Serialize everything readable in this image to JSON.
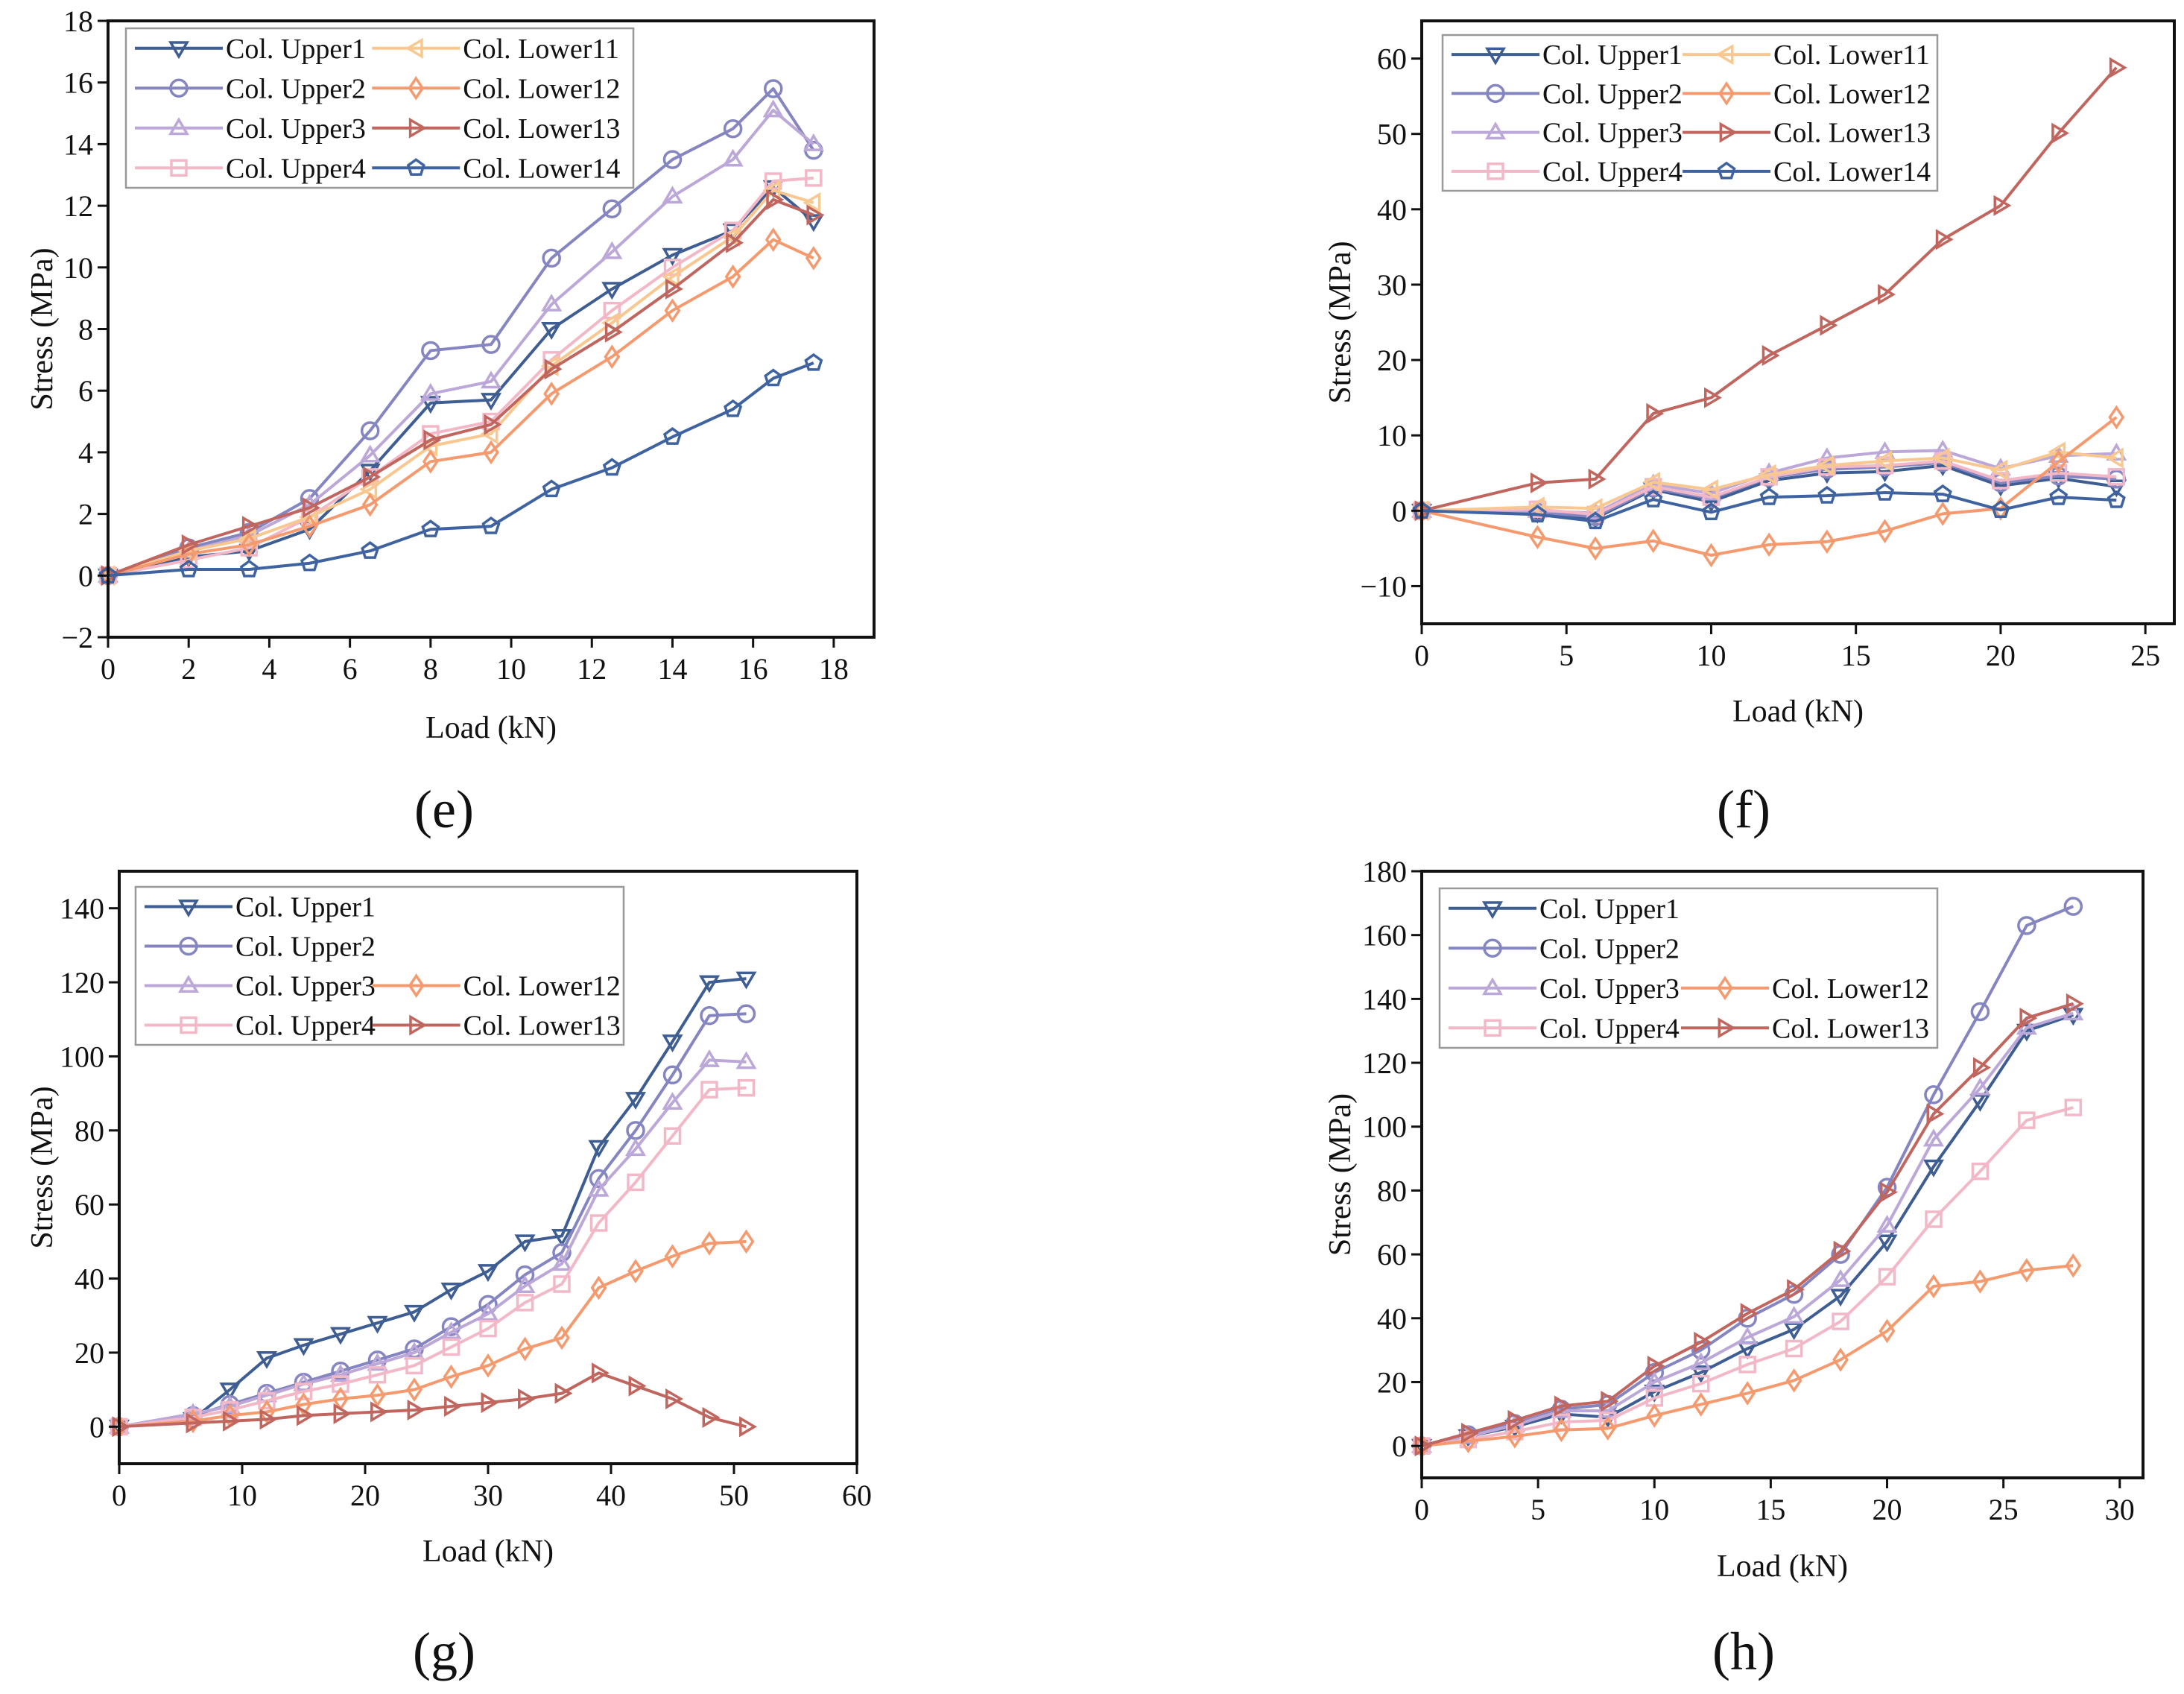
{
  "colors": {
    "Col. Upper1": "#3d5d93",
    "Col. Upper2": "#8585c2",
    "Col. Upper3": "#bba8d8",
    "Col. Upper4": "#f3b8c8",
    "Col. Lower11": "#f8c890",
    "Col. Lower12": "#f59a6e",
    "Col. Lower13": "#c0665f",
    "Col. Lower14": "#3e63a0"
  },
  "markers": {
    "Col. Upper1": "triangle-down",
    "Col. Upper2": "circle",
    "Col. Upper3": "triangle-up",
    "Col. Upper4": "square",
    "Col. Lower11": "triangle-left",
    "Col. Lower12": "diamond",
    "Col. Lower13": "triangle-right",
    "Col. Lower14": "pentagon"
  },
  "chart_data": [
    {
      "type": "line",
      "panel_label": "(e)",
      "xlabel": "Load (kN)",
      "ylabel": "Stress (MPa)",
      "xlim": [
        0,
        19
      ],
      "ylim": [
        -2,
        18
      ],
      "x_tick_labels": [
        "0",
        "2",
        "4",
        "6",
        "8",
        "10",
        "12",
        "14",
        "16",
        "18"
      ],
      "y_tick_labels": [
        "−2",
        "0",
        "2",
        "4",
        "6",
        "8",
        "10",
        "12",
        "14",
        "16",
        "18"
      ],
      "legend_placement": "top-left",
      "x": [
        0,
        2,
        3.5,
        5,
        6.5,
        8,
        9.5,
        11,
        12.5,
        14,
        15.5,
        16.5,
        17.5
      ],
      "series": [
        {
          "name": "Col. Upper1",
          "values": [
            0,
            0.6,
            0.8,
            1.5,
            3.4,
            5.6,
            5.7,
            8.0,
            9.3,
            10.4,
            11.2,
            12.6,
            11.5
          ]
        },
        {
          "name": "Col. Upper2",
          "values": [
            0,
            0.9,
            1.4,
            2.5,
            4.7,
            7.3,
            7.5,
            10.3,
            11.9,
            13.5,
            14.5,
            15.8,
            13.8
          ]
        },
        {
          "name": "Col. Upper3",
          "values": [
            0,
            0.8,
            1.3,
            2.3,
            3.9,
            5.9,
            6.3,
            8.8,
            10.5,
            12.3,
            13.5,
            15.1,
            14.0
          ]
        },
        {
          "name": "Col. Upper4",
          "values": [
            0,
            0.5,
            0.9,
            1.9,
            3.2,
            4.6,
            5.0,
            7.0,
            8.6,
            10.0,
            11.2,
            12.8,
            12.9
          ]
        },
        {
          "name": "Col. Lower11",
          "values": [
            0,
            0.8,
            1.2,
            1.9,
            2.8,
            4.2,
            4.6,
            6.8,
            8.2,
            9.7,
            11.0,
            12.5,
            12.1
          ]
        },
        {
          "name": "Col. Lower12",
          "values": [
            0,
            0.7,
            1.0,
            1.6,
            2.3,
            3.7,
            4.0,
            5.9,
            7.1,
            8.6,
            9.7,
            10.9,
            10.3
          ]
        },
        {
          "name": "Col. Lower13",
          "values": [
            0,
            1.0,
            1.6,
            2.2,
            3.2,
            4.4,
            4.9,
            6.7,
            7.9,
            9.3,
            10.8,
            12.2,
            11.7
          ]
        },
        {
          "name": "Col. Lower14",
          "values": [
            0,
            0.2,
            0.2,
            0.4,
            0.8,
            1.5,
            1.6,
            2.8,
            3.5,
            4.5,
            5.4,
            6.4,
            6.9
          ]
        }
      ]
    },
    {
      "type": "line",
      "panel_label": "(f)",
      "xlabel": "Load (kN)",
      "ylabel": "Stress (MPa)",
      "xlim": [
        0,
        26
      ],
      "ylim": [
        -15,
        65
      ],
      "x_tick_labels": [
        "0",
        "5",
        "10",
        "15",
        "20",
        "25"
      ],
      "y_tick_labels": [
        "−10",
        "0",
        "10",
        "20",
        "30",
        "40",
        "50",
        "60"
      ],
      "legend_placement": "top-left",
      "x": [
        0,
        4,
        6,
        8,
        10,
        12,
        14,
        16,
        18,
        20,
        22,
        24
      ],
      "series": [
        {
          "name": "Col. Upper1",
          "values": [
            0,
            -0.3,
            -1.0,
            2.8,
            1.2,
            4.0,
            5.0,
            5.2,
            6.0,
            3.3,
            4.3,
            3.2
          ]
        },
        {
          "name": "Col. Upper2",
          "values": [
            0,
            -0.2,
            -0.8,
            3.0,
            1.6,
            4.4,
            5.5,
            5.8,
            6.4,
            3.7,
            4.6,
            4.2
          ]
        },
        {
          "name": "Col. Upper3",
          "values": [
            0,
            0.0,
            -0.3,
            3.5,
            2.3,
            5.0,
            7.0,
            7.8,
            8.0,
            5.6,
            7.3,
            7.6
          ]
        },
        {
          "name": "Col. Upper4",
          "values": [
            0,
            0.2,
            -0.5,
            3.2,
            1.8,
            4.5,
            5.8,
            6.0,
            6.6,
            4.0,
            5.0,
            4.5
          ]
        },
        {
          "name": "Col. Lower11",
          "values": [
            0,
            0.5,
            0.3,
            3.8,
            2.8,
            4.8,
            6.0,
            6.6,
            7.0,
            5.4,
            7.8,
            7.0
          ]
        },
        {
          "name": "Col. Lower12",
          "values": [
            0,
            -3.5,
            -5.0,
            -4.0,
            -5.9,
            -4.5,
            -4.1,
            -2.7,
            -0.4,
            0.3,
            6.5,
            12.4
          ]
        },
        {
          "name": "Col. Lower13",
          "values": [
            0,
            3.7,
            4.2,
            12.9,
            15.0,
            20.6,
            24.6,
            28.7,
            36.0,
            40.5,
            50.1,
            58.8
          ]
        },
        {
          "name": "Col. Lower14",
          "values": [
            0,
            -0.5,
            -1.4,
            1.5,
            -0.2,
            1.8,
            2.0,
            2.4,
            2.2,
            0.1,
            1.8,
            1.4
          ]
        }
      ]
    },
    {
      "type": "line",
      "panel_label": "(g)",
      "xlabel": "Load (kN)",
      "ylabel": "Stress (MPa)",
      "xlim": [
        0,
        60
      ],
      "ylim": [
        -10,
        150
      ],
      "x_tick_labels": [
        "0",
        "10",
        "20",
        "30",
        "40",
        "50",
        "60"
      ],
      "y_tick_labels": [
        "0",
        "20",
        "40",
        "60",
        "80",
        "100",
        "120",
        "140"
      ],
      "legend_placement": "top-left",
      "x": [
        0,
        6,
        9,
        12,
        15,
        18,
        21,
        24,
        27,
        30,
        33,
        36,
        39,
        42,
        45,
        48,
        51
      ],
      "series": [
        {
          "name": "Col. Upper1",
          "values": [
            0,
            2,
            10,
            18.5,
            22,
            25,
            28,
            31,
            37,
            42,
            50,
            51.5,
            75.5,
            88.5,
            104,
            120,
            121
          ]
        },
        {
          "name": "Col. Upper2",
          "values": [
            0,
            3,
            6,
            9,
            12,
            15,
            18,
            21,
            27,
            33,
            41,
            47,
            67,
            80,
            95,
            111,
            111.5
          ]
        },
        {
          "name": "Col. Upper3",
          "values": [
            0,
            3.5,
            5.5,
            8.5,
            11.5,
            14,
            17,
            20,
            25.5,
            30.5,
            38,
            44,
            64,
            75,
            87.5,
            99,
            98.5
          ]
        },
        {
          "name": "Col. Upper4",
          "values": [
            0,
            2.5,
            4.5,
            7,
            9.5,
            11.5,
            14,
            16.5,
            21.5,
            26.5,
            33.5,
            38.5,
            55,
            66,
            78.5,
            91,
            91.5
          ]
        },
        {
          "name": "Col. Lower12",
          "values": [
            0,
            1.5,
            3,
            4,
            6,
            7.5,
            8.5,
            10,
            13.5,
            16.5,
            21,
            24,
            37.5,
            42,
            46,
            49.5,
            50
          ]
        },
        {
          "name": "Col. Lower13",
          "values": [
            0,
            1,
            1.5,
            2,
            3,
            3.5,
            4,
            4.5,
            5.5,
            6.5,
            7.5,
            9,
            14.5,
            11,
            7.5,
            2.5,
            0
          ]
        }
      ]
    },
    {
      "type": "line",
      "panel_label": "(h)",
      "xlabel": "Load (kN)",
      "ylabel": "Stress (MPa)",
      "xlim": [
        0,
        31
      ],
      "ylim": [
        -10,
        180
      ],
      "x_tick_labels": [
        "0",
        "5",
        "10",
        "15",
        "20",
        "25",
        "30"
      ],
      "y_tick_labels": [
        "0",
        "20",
        "40",
        "60",
        "80",
        "100",
        "120",
        "140",
        "160",
        "180"
      ],
      "legend_placement": "top-left",
      "x": [
        0,
        2,
        4,
        6,
        8,
        10,
        12,
        14,
        16,
        18,
        20,
        22,
        24,
        26,
        28
      ],
      "series": [
        {
          "name": "Col. Upper1",
          "values": [
            0,
            3,
            6,
            10,
            9,
            17,
            23,
            30.5,
            36.5,
            47,
            64,
            87.5,
            108,
            130,
            135
          ]
        },
        {
          "name": "Col. Upper2",
          "values": [
            0,
            3.5,
            7,
            11.5,
            13,
            23,
            30,
            40,
            47.5,
            60,
            81,
            110,
            136,
            163,
            169
          ]
        },
        {
          "name": "Col. Upper3",
          "values": [
            0,
            3,
            6.5,
            11,
            11,
            20,
            26,
            34,
            40.5,
            52,
            69,
            96,
            112,
            131,
            135.5
          ]
        },
        {
          "name": "Col. Upper4",
          "values": [
            0,
            2,
            4.5,
            7.5,
            8,
            15,
            19.5,
            25.5,
            30.5,
            39,
            53,
            71,
            86,
            102,
            106
          ]
        },
        {
          "name": "Col. Lower12",
          "values": [
            0,
            1.5,
            3,
            5,
            5.5,
            9.5,
            13,
            16.5,
            20.5,
            27,
            36,
            50,
            51.5,
            55,
            56.5
          ]
        },
        {
          "name": "Col. Lower13",
          "values": [
            0,
            4,
            8,
            12.5,
            14,
            25,
            32.5,
            41.5,
            49,
            61,
            79.5,
            104,
            118.5,
            134,
            138.5
          ]
        }
      ]
    }
  ]
}
